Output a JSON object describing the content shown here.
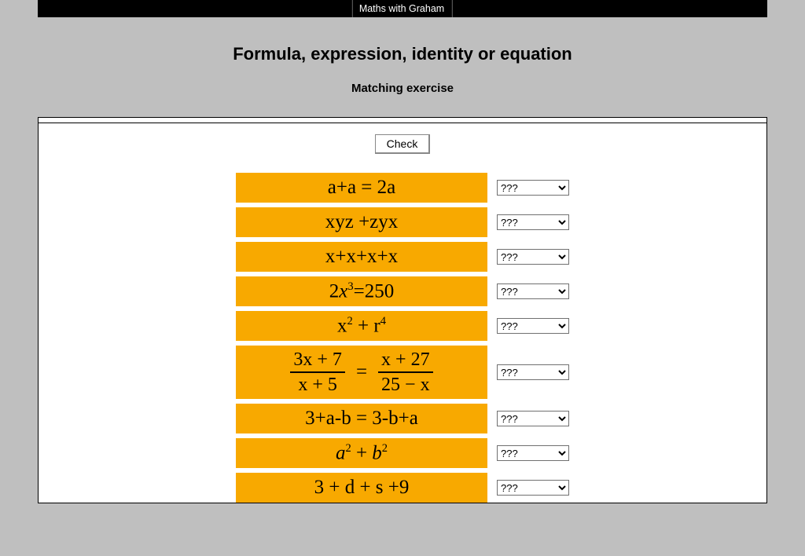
{
  "header": {
    "tab_label": "Maths with Graham"
  },
  "title": "Formula, expression, identity or equation",
  "subtitle": "Matching exercise",
  "check_label": "Check",
  "dropdown_default": "???",
  "card_color": "#f8a900",
  "questions": [
    {
      "latex_plain": "a+a = 2a"
    },
    {
      "latex_plain": "xyz +zyx"
    },
    {
      "latex_plain": "x+x+x+x"
    },
    {
      "latex_html": "2<span class='v'>x</span><sup>3</sup>=250"
    },
    {
      "latex_html": "x<sup>2</sup> + r<sup>4</sup>"
    },
    {
      "fraction_eq": {
        "left_num": "3x + 7",
        "left_den": "x + 5",
        "right_num": "x + 27",
        "right_den": "25 − x"
      }
    },
    {
      "latex_plain": "3+a-b = 3-b+a"
    },
    {
      "latex_html": "<span class='v'>a</span><sup>2</sup> + <span class='v'>b</span><sup>2</sup>"
    },
    {
      "latex_plain": "3 + d + s +9"
    }
  ]
}
